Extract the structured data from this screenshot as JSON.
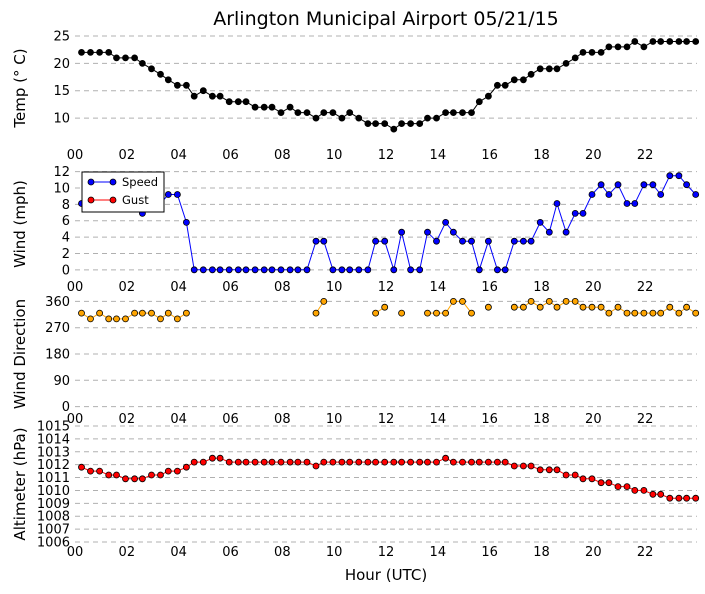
{
  "chart_data": {
    "type": "line",
    "title": "Arlington Municipal Airport 05/21/15",
    "xlabel": "Hour (UTC)",
    "x_ticks": [
      "00",
      "02",
      "04",
      "06",
      "08",
      "10",
      "12",
      "14",
      "16",
      "18",
      "20",
      "22"
    ],
    "x_range_hours": [
      0,
      24
    ],
    "colors": {
      "temp": "#000000",
      "speed": "#0000ff",
      "gust": "#ff0000",
      "direction": "#ffa500",
      "altimeter": "#ff0000",
      "grid": "#b0b0b0"
    },
    "panels": [
      {
        "id": "temp",
        "ylabel": "Temp (° C)",
        "ylim": [
          6,
          25
        ],
        "yticks": [
          10,
          15,
          20,
          25
        ],
        "series": [
          {
            "name": "Temp",
            "color_key": "temp",
            "x": [
              0.25,
              0.6,
              0.95,
              1.3,
              1.6,
              1.95,
              2.3,
              2.6,
              2.95,
              3.3,
              3.6,
              3.95,
              4.3,
              4.6,
              4.95,
              5.3,
              5.6,
              5.95,
              6.3,
              6.6,
              6.95,
              7.3,
              7.6,
              7.95,
              8.3,
              8.6,
              8.95,
              9.3,
              9.6,
              9.95,
              10.3,
              10.6,
              10.95,
              11.3,
              11.6,
              11.95,
              12.3,
              12.6,
              12.95,
              13.3,
              13.6,
              13.95,
              14.3,
              14.6,
              14.95,
              15.3,
              15.6,
              15.95,
              16.3,
              16.6,
              16.95,
              17.3,
              17.6,
              17.95,
              18.3,
              18.6,
              18.95,
              19.3,
              19.6,
              19.95,
              20.3,
              20.6,
              20.95,
              21.3,
              21.6,
              21.95,
              22.3,
              22.6,
              22.95,
              23.3,
              23.6,
              23.95
            ],
            "y": [
              22,
              22,
              22,
              22,
              21,
              21,
              21,
              20,
              19,
              18,
              17,
              16,
              16,
              14,
              15,
              14,
              14,
              13,
              13,
              13,
              12,
              12,
              12,
              11,
              12,
              11,
              11,
              10,
              11,
              11,
              10,
              11,
              10,
              9,
              9,
              9,
              8,
              9,
              9,
              9,
              10,
              10,
              11,
              11,
              11,
              11,
              13,
              14,
              16,
              16,
              17,
              17,
              18,
              19,
              19,
              19,
              20,
              21,
              22,
              22,
              22,
              23,
              23,
              23,
              24,
              23,
              24,
              24,
              24,
              24,
              24,
              24
            ]
          }
        ]
      },
      {
        "id": "wind",
        "ylabel": "Wind (mph)",
        "ylim": [
          -1,
          12.2
        ],
        "yticks": [
          0,
          2,
          4,
          6,
          8,
          10,
          12
        ],
        "legend": {
          "loc": "upper-left",
          "entries": [
            "Speed",
            "Gust"
          ]
        },
        "series": [
          {
            "name": "Speed",
            "color_key": "speed",
            "x": [
              0.25,
              0.6,
              0.95,
              1.3,
              1.6,
              1.95,
              2.3,
              2.6,
              2.95,
              3.3,
              3.6,
              3.95,
              4.3,
              4.6,
              4.95,
              5.3,
              5.6,
              5.95,
              6.3,
              6.6,
              6.95,
              7.3,
              7.6,
              7.95,
              8.3,
              8.6,
              8.95,
              9.3,
              9.6,
              9.95,
              10.3,
              10.6,
              10.95,
              11.3,
              11.6,
              11.95,
              12.3,
              12.6,
              12.95,
              13.3,
              13.6,
              13.95,
              14.3,
              14.6,
              14.95,
              15.3,
              15.6,
              15.95,
              16.3,
              16.6,
              16.95,
              17.3,
              17.6,
              17.95,
              18.3,
              18.6,
              18.95,
              19.3,
              19.6,
              19.95,
              20.3,
              20.6,
              20.95,
              21.3,
              21.6,
              21.95,
              22.3,
              22.6,
              22.95,
              23.3,
              23.6,
              23.95
            ],
            "y": [
              8.1,
              8.1,
              8.1,
              8.1,
              8.1,
              8.1,
              8.1,
              6.9,
              8.1,
              8.1,
              9.2,
              9.2,
              5.8,
              0,
              0,
              0,
              0,
              0,
              0,
              0,
              0,
              0,
              0,
              0,
              0,
              0,
              0,
              3.5,
              3.5,
              0,
              0,
              0,
              0,
              0,
              3.5,
              3.5,
              0,
              4.6,
              0,
              0,
              4.6,
              3.5,
              5.8,
              4.6,
              3.5,
              3.5,
              0,
              3.5,
              0,
              0,
              3.5,
              3.5,
              3.5,
              5.8,
              4.6,
              8.1,
              4.6,
              6.9,
              6.9,
              9.2,
              10.4,
              9.2,
              10.4,
              8.1,
              8.1,
              10.4,
              10.4,
              9.2,
              11.5,
              11.5,
              10.4,
              9.2
            ]
          },
          {
            "name": "Gust",
            "color_key": "gust",
            "x": [],
            "y": []
          }
        ]
      },
      {
        "id": "direction",
        "ylabel": "Wind Direction",
        "ylim": [
          -15,
          375
        ],
        "yticks": [
          0,
          90,
          180,
          270,
          360
        ],
        "series": [
          {
            "name": "Direction",
            "color_key": "direction",
            "x": [
              0.25,
              0.6,
              0.95,
              1.3,
              1.6,
              1.95,
              2.3,
              2.6,
              2.95,
              3.3,
              3.6,
              3.95,
              4.3,
              null,
              9.3,
              9.6,
              null,
              11.6,
              11.95,
              null,
              12.6,
              null,
              13.6,
              13.95,
              14.3,
              14.6,
              14.95,
              15.3,
              null,
              15.95,
              null,
              16.95,
              17.3,
              17.6,
              17.95,
              18.3,
              18.6,
              18.95,
              19.3,
              19.6,
              19.95,
              20.3,
              20.6,
              20.95,
              21.3,
              21.6,
              21.95,
              22.3,
              22.6,
              22.95,
              23.3,
              23.6,
              23.95
            ],
            "y": [
              320,
              300,
              320,
              300,
              300,
              300,
              320,
              320,
              320,
              300,
              320,
              300,
              320,
              null,
              320,
              360,
              null,
              320,
              340,
              null,
              320,
              null,
              320,
              320,
              320,
              360,
              360,
              320,
              null,
              340,
              null,
              340,
              340,
              360,
              340,
              360,
              340,
              360,
              360,
              340,
              340,
              340,
              320,
              340,
              320,
              320,
              320,
              320,
              320,
              340,
              320,
              340,
              320
            ]
          }
        ]
      },
      {
        "id": "altimeter",
        "ylabel": "Altimeter (hPa)",
        "ylim": [
          1006,
          1015
        ],
        "yticks": [
          1006,
          1007,
          1008,
          1009,
          1010,
          1011,
          1012,
          1013,
          1014,
          1015
        ],
        "series": [
          {
            "name": "Altimeter",
            "color_key": "altimeter",
            "x": [
              0.25,
              0.6,
              0.95,
              1.3,
              1.6,
              1.95,
              2.3,
              2.6,
              2.95,
              3.3,
              3.6,
              3.95,
              4.3,
              4.6,
              4.95,
              5.3,
              5.6,
              5.95,
              6.3,
              6.6,
              6.95,
              7.3,
              7.6,
              7.95,
              8.3,
              8.6,
              8.95,
              9.3,
              9.6,
              9.95,
              10.3,
              10.6,
              10.95,
              11.3,
              11.6,
              11.95,
              12.3,
              12.6,
              12.95,
              13.3,
              13.6,
              13.95,
              14.3,
              14.6,
              14.95,
              15.3,
              15.6,
              15.95,
              16.3,
              16.6,
              16.95,
              17.3,
              17.6,
              17.95,
              18.3,
              18.6,
              18.95,
              19.3,
              19.6,
              19.95,
              20.3,
              20.6,
              20.95,
              21.3,
              21.6,
              21.95,
              22.3,
              22.6,
              22.95,
              23.3,
              23.6,
              23.95
            ],
            "y": [
              1011.8,
              1011.5,
              1011.5,
              1011.2,
              1011.2,
              1010.9,
              1010.9,
              1010.9,
              1011.2,
              1011.2,
              1011.5,
              1011.5,
              1011.8,
              1012.2,
              1012.2,
              1012.5,
              1012.5,
              1012.2,
              1012.2,
              1012.2,
              1012.2,
              1012.2,
              1012.2,
              1012.2,
              1012.2,
              1012.2,
              1012.2,
              1011.9,
              1012.2,
              1012.2,
              1012.2,
              1012.2,
              1012.2,
              1012.2,
              1012.2,
              1012.2,
              1012.2,
              1012.2,
              1012.2,
              1012.2,
              1012.2,
              1012.2,
              1012.5,
              1012.2,
              1012.2,
              1012.2,
              1012.2,
              1012.2,
              1012.2,
              1012.2,
              1011.9,
              1011.9,
              1011.9,
              1011.6,
              1011.6,
              1011.6,
              1011.2,
              1011.2,
              1010.9,
              1010.9,
              1010.6,
              1010.6,
              1010.3,
              1010.3,
              1010.0,
              1010.0,
              1009.7,
              1009.7,
              1009.4,
              1009.4,
              1009.4,
              1009.4
            ]
          }
        ]
      }
    ]
  }
}
